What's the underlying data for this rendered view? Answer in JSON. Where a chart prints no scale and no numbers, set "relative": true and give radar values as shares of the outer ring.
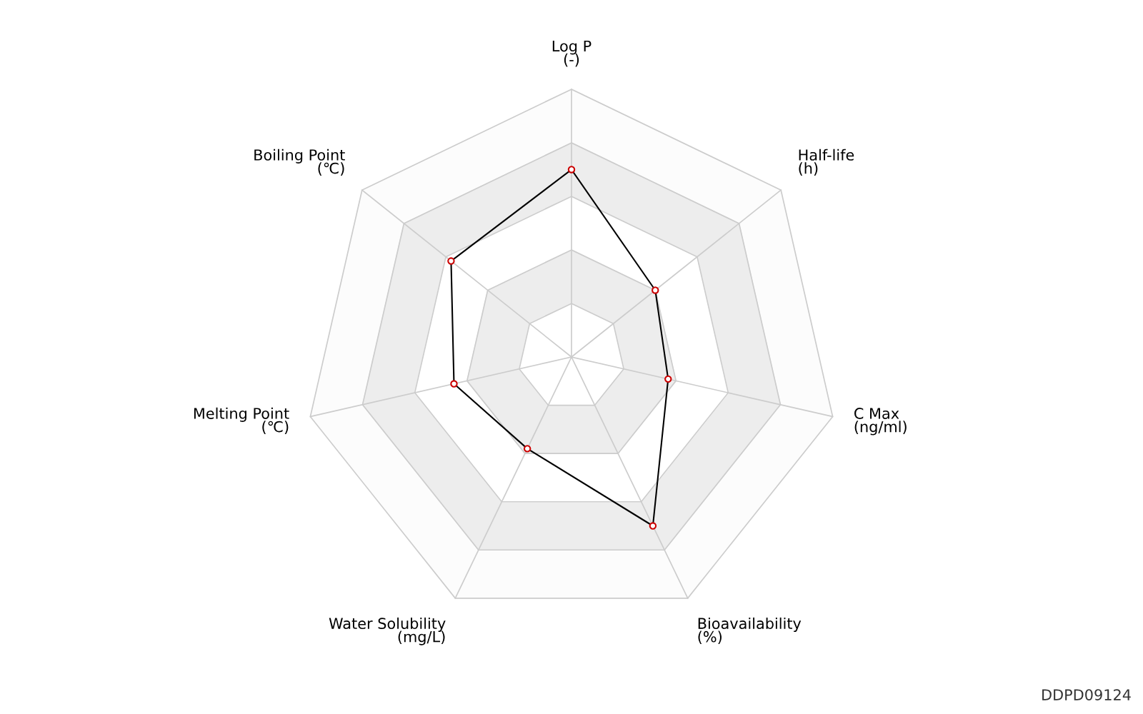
{
  "chart_data": {
    "type": "radar",
    "relative": true,
    "grid": true,
    "marker": "circle",
    "line_style": "solid",
    "categories": [
      "Log P\n(-)",
      "Half-life\n(h)",
      "C Max\n(ng/ml)",
      "Bioavailability\n(%)",
      "Water Solubility\n(mg/L)",
      "Melting Point\n(℃)",
      "Boiling Point\n(℃)"
    ],
    "series": [
      {
        "color": "#000000",
        "values": [
          0.7,
          0.4,
          0.37,
          0.7,
          0.38,
          0.45,
          0.575
        ]
      }
    ],
    "annotations": [
      "DDPD09124"
    ]
  }
}
